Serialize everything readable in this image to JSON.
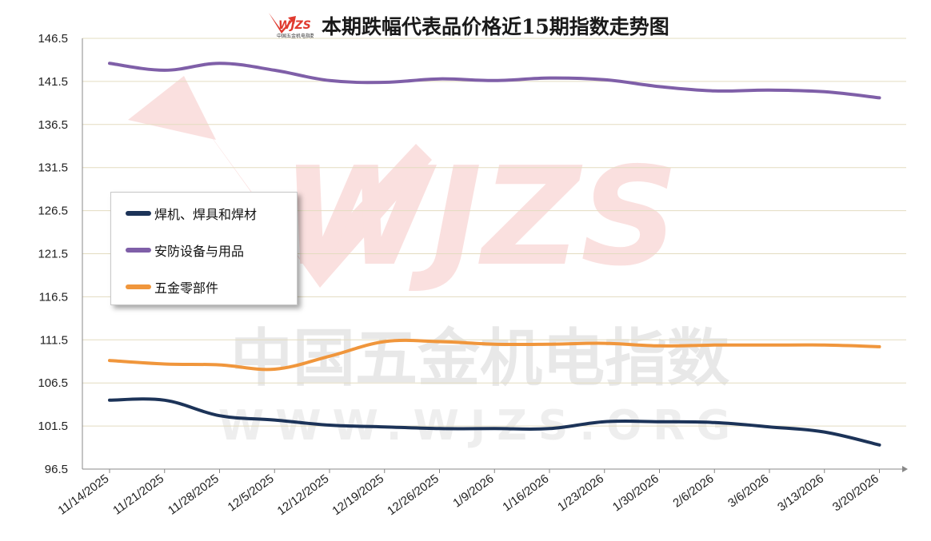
{
  "header": {
    "logo_text": "WJZS",
    "logo_subtext": "中国五金机电指数",
    "title": "本期跌幅代表品价格近15期指数走势图"
  },
  "watermark": {
    "logo": "WJZS",
    "line1": "中国五金机电指数",
    "line2": "WWW.WJZS.ORG"
  },
  "colors": {
    "series1": "#1c3358",
    "series2": "#7f5fa8",
    "series3": "#f0963c",
    "grid": "#e3dcc0",
    "axis": "#888888"
  },
  "chart_data": {
    "type": "line",
    "title": "本期跌幅代表品价格近15期指数走势图",
    "xlabel": "",
    "ylabel": "",
    "ylim": [
      96.5,
      146.5
    ],
    "yticks": [
      "96.5",
      "101.5",
      "106.5",
      "111.5",
      "116.5",
      "121.5",
      "126.5",
      "131.5",
      "136.5",
      "141.5",
      "146.5"
    ],
    "grid": true,
    "legend_position": "left-middle",
    "categories": [
      "11/14/2025",
      "11/21/2025",
      "11/28/2025",
      "12/5/2025",
      "12/12/2025",
      "12/19/2025",
      "12/26/2025",
      "1/9/2026",
      "1/16/2026",
      "1/23/2026",
      "1/30/2026",
      "2/6/2026",
      "3/6/2026",
      "3/13/2026",
      "3/20/2026"
    ],
    "series": [
      {
        "name": "焊机、焊具和焊材",
        "color": "#1c3358",
        "values": [
          104.5,
          104.5,
          102.7,
          102.2,
          101.6,
          101.4,
          101.2,
          101.2,
          101.2,
          102.0,
          102.0,
          101.9,
          101.4,
          100.8,
          99.3
        ]
      },
      {
        "name": "安防设备与用品",
        "color": "#7f5fa8",
        "values": [
          143.6,
          142.8,
          143.6,
          142.8,
          141.6,
          141.4,
          141.8,
          141.6,
          141.9,
          141.7,
          140.9,
          140.4,
          140.5,
          140.3,
          139.6
        ]
      },
      {
        "name": "五金零部件",
        "color": "#f0963c",
        "values": [
          109.1,
          108.7,
          108.6,
          108.1,
          109.6,
          111.3,
          111.3,
          111.0,
          111.0,
          111.1,
          110.8,
          110.9,
          110.9,
          110.9,
          110.7
        ]
      }
    ]
  }
}
